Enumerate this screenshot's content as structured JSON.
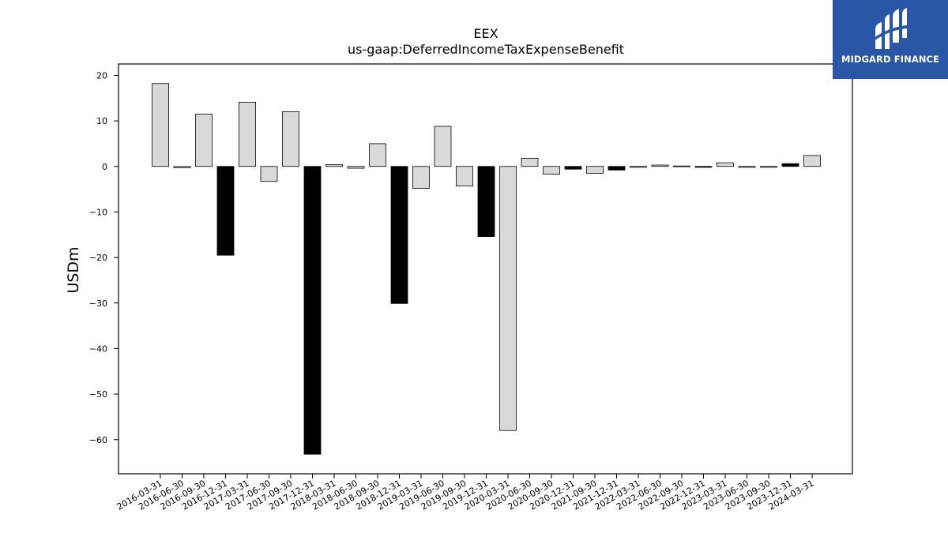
{
  "logo": {
    "text": "MIDGARD FINANCE",
    "mark": "midgard-logo-icon"
  },
  "chart_data": {
    "type": "bar",
    "title": "EEX",
    "subtitle": "us-gaap:DeferredIncomeTaxExpenseBenefit",
    "xlabel": "",
    "ylabel": "USDm",
    "ylim": [
      -67.5,
      22.5
    ],
    "yticks": [
      20,
      10,
      0,
      -10,
      -20,
      -30,
      -40,
      -50,
      -60
    ],
    "grid": false,
    "colors": {
      "normal": "#d9d9d9",
      "q4": "#000000",
      "edge": "#000000"
    },
    "categories": [
      "2016-03-31",
      "2016-06-30",
      "2016-09-30",
      "2016-12-31",
      "2017-03-31",
      "2017-06-30",
      "2017-09-30",
      "2017-12-31",
      "2018-03-31",
      "2018-06-30",
      "2018-09-30",
      "2018-12-31",
      "2019-03-31",
      "2019-06-30",
      "2019-09-30",
      "2019-12-31",
      "2020-03-31",
      "2020-06-30",
      "2020-09-30",
      "2020-12-31",
      "2021-09-30",
      "2021-12-31",
      "2022-03-31",
      "2022-06-30",
      "2022-09-30",
      "2022-12-31",
      "2023-03-31",
      "2023-06-30",
      "2023-09-30",
      "2023-12-31",
      "2024-03-31"
    ],
    "values": [
      18.2,
      -0.3,
      11.5,
      -19.5,
      14.1,
      -3.3,
      12.0,
      -63.2,
      0.4,
      -0.4,
      5.0,
      -30.1,
      -4.8,
      8.8,
      -4.3,
      -15.4,
      -58.0,
      1.8,
      -1.7,
      -0.6,
      -1.5,
      -0.8,
      -0.2,
      0.3,
      0.1,
      -0.2,
      0.8,
      -0.2,
      -0.2,
      0.6,
      2.4
    ],
    "highlight": [
      false,
      false,
      false,
      true,
      false,
      false,
      false,
      true,
      false,
      false,
      false,
      true,
      false,
      false,
      false,
      true,
      false,
      false,
      false,
      true,
      false,
      true,
      false,
      false,
      false,
      true,
      false,
      false,
      false,
      true,
      false
    ]
  }
}
